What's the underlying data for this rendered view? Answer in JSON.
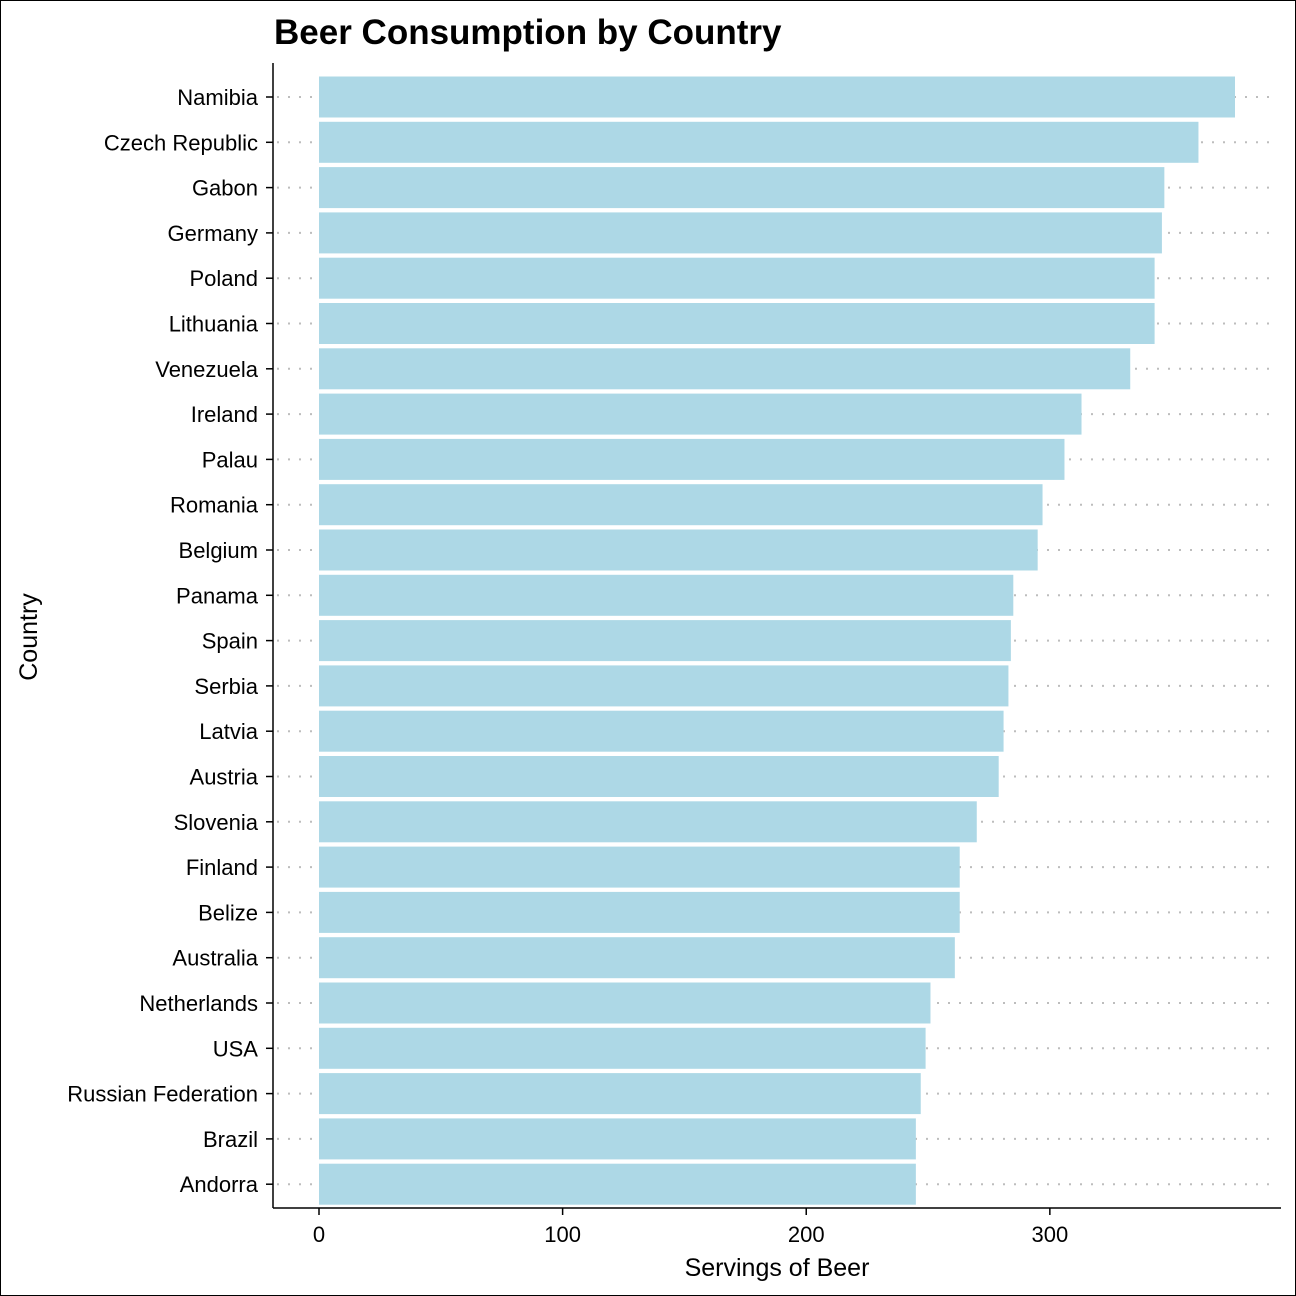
{
  "chart_data": {
    "type": "bar",
    "orientation": "horizontal",
    "title": "Beer Consumption by Country",
    "xlabel": "Servings of Beer",
    "ylabel": "Country",
    "xlim": [
      0,
      376
    ],
    "x_ticks": [
      0,
      100,
      200,
      300
    ],
    "categories": [
      "Namibia",
      "Czech Republic",
      "Gabon",
      "Germany",
      "Poland",
      "Lithuania",
      "Venezuela",
      "Ireland",
      "Palau",
      "Romania",
      "Belgium",
      "Panama",
      "Spain",
      "Serbia",
      "Latvia",
      "Austria",
      "Slovenia",
      "Finland",
      "Belize",
      "Australia",
      "Netherlands",
      "USA",
      "Russian Federation",
      "Brazil",
      "Andorra"
    ],
    "values": [
      376,
      361,
      347,
      346,
      343,
      343,
      333,
      313,
      306,
      297,
      295,
      285,
      284,
      283,
      281,
      279,
      270,
      263,
      263,
      261,
      251,
      249,
      247,
      245,
      245
    ],
    "bar_color": "#add8e6",
    "grid": "horizontal dotted",
    "legend": "none"
  }
}
